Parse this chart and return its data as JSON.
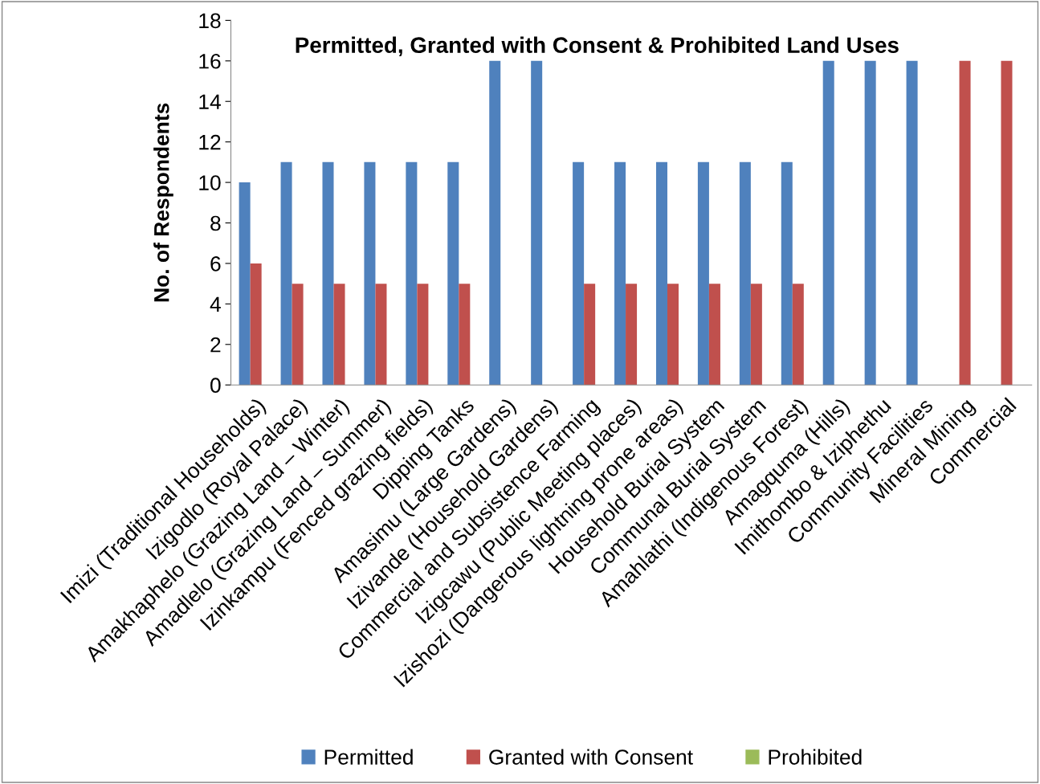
{
  "chart_data": {
    "type": "bar",
    "title": "Permitted, Granted with Consent & Prohibited Land Uses",
    "ylabel": "No. of Respondents",
    "categories": [
      "Imizi (Traditional Households)",
      "Izigodlo (Royal Palace)",
      "Amakhaphelo (Grazing Land – Winter)",
      "Amadlelo (Grazing Land – Summer)",
      "Izinkampu (Fenced grazing fields)",
      "Dipping Tanks",
      "Amasimu (Large Gardens)",
      "Izivande (Household Gardens)",
      "Commercial and Subsistence Farming",
      "Izigcawu (Public Meeting places)",
      "Izishozi (Dangerous lightning prone areas)",
      "Household Burial System",
      "Communal Burial System",
      "Amahlathi (Indigenous Forest)",
      "Amagquma (Hills)",
      "Imithombo & Iziphethu",
      "Community Facilities",
      "Mineral Mining",
      "Commercial"
    ],
    "series": [
      {
        "name": "Permitted",
        "color": "#4f81bd",
        "values": [
          10,
          11,
          11,
          11,
          11,
          11,
          16,
          16,
          11,
          11,
          11,
          11,
          11,
          11,
          16,
          16,
          16,
          0,
          0
        ]
      },
      {
        "name": "Granted with Consent",
        "color": "#c0504d",
        "values": [
          6,
          5,
          5,
          5,
          5,
          5,
          0,
          0,
          5,
          5,
          5,
          5,
          5,
          5,
          0,
          0,
          0,
          16,
          16
        ]
      },
      {
        "name": "Prohibited",
        "color": "#9bbb59",
        "values": [
          0,
          0,
          0,
          0,
          0,
          0,
          0,
          0,
          0,
          0,
          0,
          0,
          0,
          0,
          0,
          0,
          0,
          0,
          0
        ]
      }
    ],
    "ylim": [
      0,
      18
    ],
    "yticks": [
      0,
      2,
      4,
      6,
      8,
      10,
      12,
      14,
      16,
      18
    ],
    "grid": false,
    "legend": "bottom"
  }
}
